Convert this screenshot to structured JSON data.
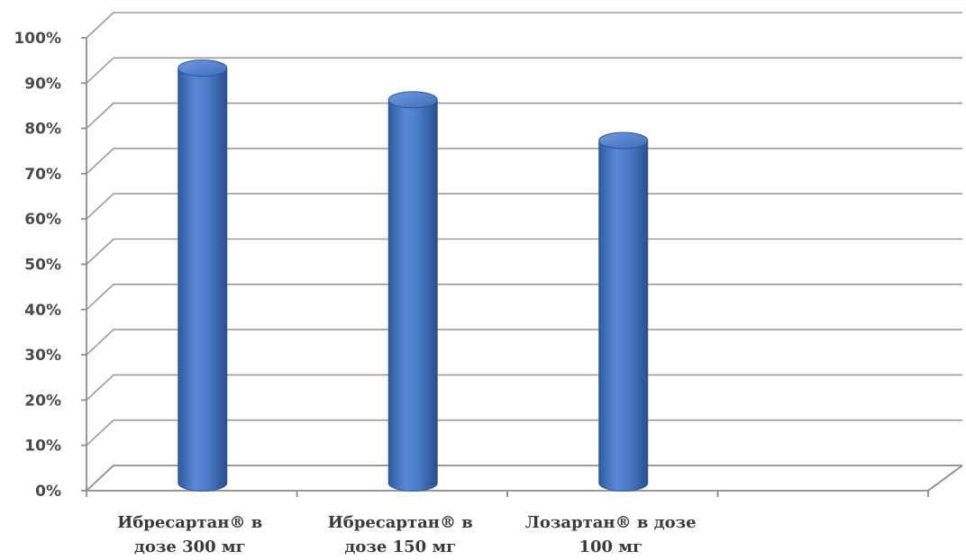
{
  "chart_data": {
    "type": "bar",
    "style": "3d-cylinder",
    "categories": [
      [
        "Ибресартан® в",
        "дозе 300 мг"
      ],
      [
        "Ибресартан® в",
        "дозе 150 мг"
      ],
      [
        "Лозартан® в дозе",
        "100 мг"
      ]
    ],
    "values": [
      92,
      85,
      76
    ],
    "value_unit": "%",
    "ylim": [
      0,
      100
    ],
    "yticks": [
      "0%",
      "10%",
      "20%",
      "30%",
      "40%",
      "50%",
      "60%",
      "70%",
      "80%",
      "90%",
      "100%"
    ],
    "grid": true,
    "legend": "none",
    "bar_color": "#4472c4",
    "bar_edge_color": "#2f5597",
    "title": "",
    "xlabel": "",
    "ylabel": ""
  }
}
